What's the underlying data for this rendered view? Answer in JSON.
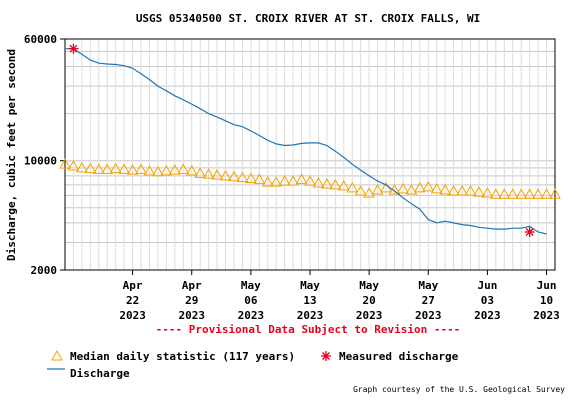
{
  "chart_data": {
    "type": "line",
    "title": "USGS 05340500 ST. CROIX RIVER AT ST. CROIX FALLS, WI",
    "ylabel": "Discharge, cubic feet per second",
    "xlabel": "",
    "y_scale": "log",
    "ylim": [
      2000,
      60000
    ],
    "y_ticks": [
      {
        "value": 2000,
        "label": "2000"
      },
      {
        "value": 10000,
        "label": "10000"
      },
      {
        "value": 60000,
        "label": "60000"
      }
    ],
    "xlim": [
      "2023-04-14",
      "2023-06-11"
    ],
    "x_ticks": [
      {
        "date": "2023-04-22",
        "label": [
          "Apr",
          "22",
          "2023"
        ]
      },
      {
        "date": "2023-04-29",
        "label": [
          "Apr",
          "29",
          "2023"
        ]
      },
      {
        "date": "2023-05-06",
        "label": [
          "May",
          "06",
          "2023"
        ]
      },
      {
        "date": "2023-05-13",
        "label": [
          "May",
          "13",
          "2023"
        ]
      },
      {
        "date": "2023-05-20",
        "label": [
          "May",
          "20",
          "2023"
        ]
      },
      {
        "date": "2023-05-27",
        "label": [
          "May",
          "27",
          "2023"
        ]
      },
      {
        "date": "2023-06-03",
        "label": [
          "Jun",
          "03",
          "2023"
        ]
      },
      {
        "date": "2023-06-10",
        "label": [
          "Jun",
          "10",
          "2023"
        ]
      }
    ],
    "grid": true,
    "legend_placement": "bottom-left",
    "series": [
      {
        "name": "Discharge",
        "kind": "line",
        "color": "#1f77b4",
        "points": [
          [
            "2023-04-14",
            52000
          ],
          [
            "2023-04-15",
            52000
          ],
          [
            "2023-04-16",
            48000
          ],
          [
            "2023-04-17",
            44000
          ],
          [
            "2023-04-18",
            42000
          ],
          [
            "2023-04-19",
            41500
          ],
          [
            "2023-04-20",
            41200
          ],
          [
            "2023-04-21",
            40500
          ],
          [
            "2023-04-22",
            39000
          ],
          [
            "2023-04-23",
            36000
          ],
          [
            "2023-04-24",
            33000
          ],
          [
            "2023-04-25",
            30000
          ],
          [
            "2023-04-26",
            28000
          ],
          [
            "2023-04-27",
            26000
          ],
          [
            "2023-04-28",
            24500
          ],
          [
            "2023-04-29",
            23000
          ],
          [
            "2023-04-30",
            21500
          ],
          [
            "2023-05-01",
            20000
          ],
          [
            "2023-05-02",
            19000
          ],
          [
            "2023-05-03",
            18000
          ],
          [
            "2023-05-04",
            17000
          ],
          [
            "2023-05-05",
            16500
          ],
          [
            "2023-05-06",
            15500
          ],
          [
            "2023-05-07",
            14500
          ],
          [
            "2023-05-08",
            13500
          ],
          [
            "2023-05-09",
            12800
          ],
          [
            "2023-05-10",
            12500
          ],
          [
            "2023-05-11",
            12600
          ],
          [
            "2023-05-12",
            12900
          ],
          [
            "2023-05-13",
            13000
          ],
          [
            "2023-05-14",
            13000
          ],
          [
            "2023-05-15",
            12500
          ],
          [
            "2023-05-16",
            11500
          ],
          [
            "2023-05-17",
            10500
          ],
          [
            "2023-05-18",
            9500
          ],
          [
            "2023-05-19",
            8700
          ],
          [
            "2023-05-20",
            8000
          ],
          [
            "2023-05-21",
            7400
          ],
          [
            "2023-05-22",
            7000
          ],
          [
            "2023-05-23",
            6400
          ],
          [
            "2023-05-24",
            5800
          ],
          [
            "2023-05-25",
            5300
          ],
          [
            "2023-05-26",
            4900
          ],
          [
            "2023-05-27",
            4200
          ],
          [
            "2023-05-28",
            4000
          ],
          [
            "2023-05-29",
            4100
          ],
          [
            "2023-05-30",
            4000
          ],
          [
            "2023-05-31",
            3900
          ],
          [
            "2023-06-01",
            3850
          ],
          [
            "2023-06-02",
            3750
          ],
          [
            "2023-06-03",
            3700
          ],
          [
            "2023-06-04",
            3650
          ],
          [
            "2023-06-05",
            3650
          ],
          [
            "2023-06-06",
            3700
          ],
          [
            "2023-06-07",
            3700
          ],
          [
            "2023-06-08",
            3800
          ],
          [
            "2023-06-09",
            3500
          ],
          [
            "2023-06-10",
            3400
          ]
        ]
      },
      {
        "name": "Median daily statistic (117 years)",
        "kind": "triangles",
        "color": "#f5a300",
        "points": [
          [
            "2023-04-14",
            9500
          ],
          [
            "2023-04-15",
            9250
          ],
          [
            "2023-04-16",
            9000
          ],
          [
            "2023-04-17",
            8900
          ],
          [
            "2023-04-18",
            8800
          ],
          [
            "2023-04-19",
            8800
          ],
          [
            "2023-04-20",
            8900
          ],
          [
            "2023-04-21",
            8800
          ],
          [
            "2023-04-22",
            8700
          ],
          [
            "2023-04-23",
            8800
          ],
          [
            "2023-04-24",
            8600
          ],
          [
            "2023-04-25",
            8500
          ],
          [
            "2023-04-26",
            8600
          ],
          [
            "2023-04-27",
            8700
          ],
          [
            "2023-04-28",
            8800
          ],
          [
            "2023-04-29",
            8600
          ],
          [
            "2023-04-30",
            8300
          ],
          [
            "2023-05-01",
            8200
          ],
          [
            "2023-05-02",
            8100
          ],
          [
            "2023-05-03",
            8000
          ],
          [
            "2023-05-04",
            7900
          ],
          [
            "2023-05-05",
            7800
          ],
          [
            "2023-05-06",
            7700
          ],
          [
            "2023-05-07",
            7600
          ],
          [
            "2023-05-08",
            7300
          ],
          [
            "2023-05-09",
            7300
          ],
          [
            "2023-05-10",
            7400
          ],
          [
            "2023-05-11",
            7400
          ],
          [
            "2023-05-12",
            7600
          ],
          [
            "2023-05-13",
            7400
          ],
          [
            "2023-05-14",
            7200
          ],
          [
            "2023-05-15",
            7100
          ],
          [
            "2023-05-16",
            7000
          ],
          [
            "2023-05-17",
            6900
          ],
          [
            "2023-05-18",
            6700
          ],
          [
            "2023-05-19",
            6400
          ],
          [
            "2023-05-20",
            6200
          ],
          [
            "2023-05-21",
            6500
          ],
          [
            "2023-05-22",
            6700
          ],
          [
            "2023-05-23",
            6500
          ],
          [
            "2023-05-24",
            6600
          ],
          [
            "2023-05-25",
            6500
          ],
          [
            "2023-05-26",
            6700
          ],
          [
            "2023-05-27",
            6800
          ],
          [
            "2023-05-28",
            6600
          ],
          [
            "2023-05-29",
            6500
          ],
          [
            "2023-05-30",
            6400
          ],
          [
            "2023-05-31",
            6400
          ],
          [
            "2023-06-01",
            6400
          ],
          [
            "2023-06-02",
            6300
          ],
          [
            "2023-06-03",
            6200
          ],
          [
            "2023-06-04",
            6100
          ],
          [
            "2023-06-05",
            6100
          ],
          [
            "2023-06-06",
            6100
          ],
          [
            "2023-06-07",
            6100
          ],
          [
            "2023-06-08",
            6100
          ],
          [
            "2023-06-09",
            6100
          ],
          [
            "2023-06-10",
            6100
          ],
          [
            "2023-06-11",
            6100
          ]
        ]
      },
      {
        "name": "Measured discharge",
        "kind": "stars",
        "color": "#e8001c",
        "points": [
          [
            "2023-04-15",
            52000
          ],
          [
            "2023-06-08",
            3500
          ]
        ]
      }
    ],
    "provisional_text": "---- Provisional Data Subject to Revision ----",
    "provisional_color": "#e8001c",
    "credit": "Graph courtesy of the U.S. Geological Survey"
  }
}
